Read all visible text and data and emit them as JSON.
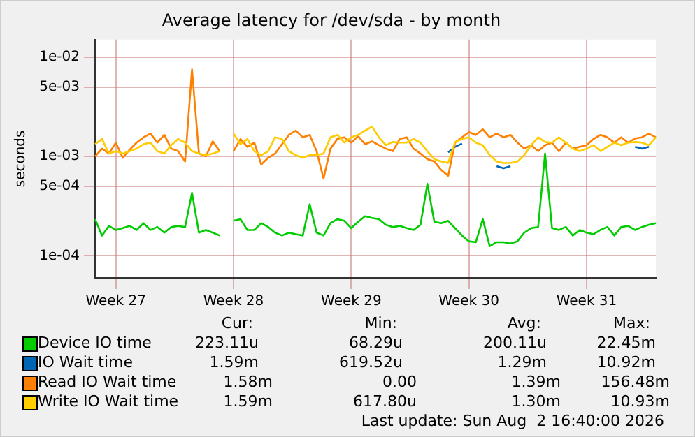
{
  "chart_data": {
    "type": "line",
    "title": "Average latency for /dev/sda - by month",
    "ylabel": "seconds",
    "log": "y",
    "grid": true,
    "legend": "bottom",
    "marker": "none",
    "line_style": "solid",
    "ylim": [
      6e-05,
      0.015
    ],
    "yticks": [
      {
        "value": 0.0001,
        "label": "1e-04"
      },
      {
        "value": 0.0005,
        "label": "5e-04"
      },
      {
        "value": 0.001,
        "label": "1e-03"
      },
      {
        "value": 0.005,
        "label": "5e-03"
      },
      {
        "value": 0.01,
        "label": "1e-02"
      }
    ],
    "categories": [
      null,
      null,
      null,
      "Week 27",
      null,
      null,
      null,
      null,
      null,
      null,
      null,
      null,
      null,
      null,
      null,
      null,
      null,
      null,
      null,
      null,
      "Week 28",
      null,
      null,
      null,
      null,
      null,
      null,
      null,
      null,
      null,
      null,
      null,
      null,
      null,
      null,
      null,
      null,
      "Week 29",
      null,
      null,
      null,
      null,
      null,
      null,
      null,
      null,
      null,
      null,
      null,
      null,
      null,
      null,
      null,
      null,
      "Week 30",
      null,
      null,
      null,
      null,
      null,
      null,
      null,
      null,
      null,
      null,
      null,
      null,
      null,
      null,
      null,
      null,
      "Week 31",
      null,
      null,
      null,
      null,
      null,
      null,
      null,
      null,
      null,
      null
    ],
    "series": [
      {
        "name": "Device IO time",
        "color": "#00cc00",
        "values": [
          0.000234,
          0.00016,
          0.0002,
          0.000182,
          0.00019,
          0.0002,
          0.000182,
          0.000213,
          0.000182,
          0.000195,
          0.000171,
          0.000195,
          0.0002,
          0.000195,
          0.00043,
          0.000171,
          0.000182,
          0.000171,
          0.00016,
          null,
          0.000225,
          0.000234,
          0.000182,
          0.000182,
          0.000213,
          0.000195,
          0.000171,
          0.00016,
          0.000171,
          0.000165,
          0.00016,
          0.00033,
          0.000171,
          0.00016,
          0.000213,
          0.000234,
          0.000225,
          0.00019,
          0.00022,
          0.00025,
          0.00024,
          0.000234,
          0.000205,
          0.000195,
          0.0002,
          0.00019,
          0.000182,
          0.000205,
          0.00053,
          0.00022,
          0.000213,
          0.000225,
          0.00019,
          0.00016,
          0.00014,
          0.000137,
          0.000234,
          0.000125,
          0.000137,
          0.000137,
          0.000133,
          0.00014,
          0.000171,
          0.00019,
          0.000195,
          0.00107,
          0.00019,
          0.000182,
          0.000195,
          0.00016,
          0.000182,
          0.000171,
          0.000165,
          0.000182,
          0.000195,
          0.00016,
          0.000195,
          0.0002,
          0.000182,
          0.000195,
          0.000205,
          0.000213
        ]
      },
      {
        "name": "IO Wait time",
        "color": "#0066b3",
        "values": [
          null,
          null,
          null,
          null,
          null,
          null,
          null,
          null,
          null,
          null,
          null,
          null,
          null,
          null,
          null,
          null,
          null,
          null,
          null,
          null,
          null,
          null,
          null,
          null,
          null,
          null,
          null,
          null,
          null,
          null,
          null,
          null,
          null,
          null,
          null,
          null,
          null,
          null,
          null,
          null,
          null,
          null,
          null,
          null,
          null,
          null,
          null,
          null,
          null,
          null,
          null,
          0.0011,
          0.00125,
          0.00135,
          null,
          null,
          null,
          null,
          0.0008,
          0.00076,
          0.0008,
          null,
          null,
          null,
          null,
          null,
          null,
          null,
          null,
          null,
          null,
          null,
          null,
          null,
          null,
          null,
          null,
          null,
          0.00125,
          0.0012,
          0.00125,
          null
        ]
      },
      {
        "name": "Read IO Wait time",
        "color": "#ff8000",
        "values": [
          0.001,
          0.0012,
          0.00107,
          0.00138,
          0.00097,
          0.00117,
          0.00138,
          0.00156,
          0.0017,
          0.00138,
          0.00165,
          0.0012,
          0.00113,
          0.00089,
          0.0075,
          0.00107,
          0.001,
          0.00142,
          0.00113,
          null,
          0.00113,
          0.0015,
          0.00125,
          0.00138,
          0.00083,
          0.00097,
          0.00107,
          0.00133,
          0.00165,
          0.00182,
          0.00156,
          0.00165,
          0.00113,
          0.0006,
          0.0012,
          0.0015,
          0.00156,
          0.00138,
          0.0016,
          0.00133,
          0.00142,
          0.0013,
          0.0012,
          0.00113,
          0.0015,
          0.00156,
          0.0012,
          0.00107,
          0.00094,
          0.00089,
          0.00073,
          0.00064,
          0.00138,
          0.00156,
          0.00176,
          0.00165,
          0.00188,
          0.00156,
          0.0017,
          0.00156,
          0.00165,
          0.00138,
          0.0012,
          0.0013,
          0.00113,
          0.0013,
          0.00138,
          0.00113,
          0.00138,
          0.0012,
          0.00125,
          0.0013,
          0.0015,
          0.00165,
          0.00156,
          0.00138,
          0.00156,
          0.00138,
          0.00152,
          0.00156,
          0.0017,
          0.00156
        ]
      },
      {
        "name": "Write IO Wait time",
        "color": "#ffcc00",
        "values": [
          0.00133,
          0.0015,
          0.00107,
          0.00113,
          0.00107,
          0.00113,
          0.0012,
          0.00133,
          0.00138,
          0.00113,
          0.00107,
          0.0013,
          0.0015,
          0.00138,
          0.00113,
          0.00107,
          0.00103,
          0.00107,
          0.00113,
          null,
          0.0017,
          0.00133,
          0.0015,
          0.00113,
          0.00103,
          0.00113,
          0.00156,
          0.0015,
          0.00113,
          0.00103,
          0.00097,
          0.00103,
          0.00103,
          0.00107,
          0.00156,
          0.00165,
          0.00138,
          0.00156,
          0.00165,
          0.00182,
          0.002,
          0.00156,
          0.0013,
          0.0014,
          0.00138,
          0.00138,
          0.0015,
          0.00138,
          0.00113,
          0.00094,
          0.00089,
          0.00086,
          0.0014,
          0.0015,
          0.00156,
          0.00138,
          0.0013,
          0.00103,
          0.00089,
          0.00086,
          0.00086,
          0.00089,
          0.00103,
          0.0013,
          0.00156,
          0.0014,
          0.00138,
          0.00156,
          0.00138,
          0.0012,
          0.00113,
          0.0012,
          0.0013,
          0.00113,
          0.00125,
          0.00138,
          0.0013,
          0.00138,
          0.0014,
          0.00138,
          0.0013,
          0.00156
        ]
      }
    ],
    "annotations": [
      "Cur:",
      "Min:",
      "Avg:",
      "Max:",
      "223.11u",
      "68.29u",
      "200.11u",
      "22.45m",
      "1.59m",
      "619.52u",
      "1.29m",
      "10.92m",
      "1.58m",
      "0.00",
      "1.39m",
      "156.48m",
      "1.59m",
      "617.80u",
      "1.30m",
      "10.93m",
      "Last update: Sun Aug  2 16:40:00 2026"
    ]
  }
}
